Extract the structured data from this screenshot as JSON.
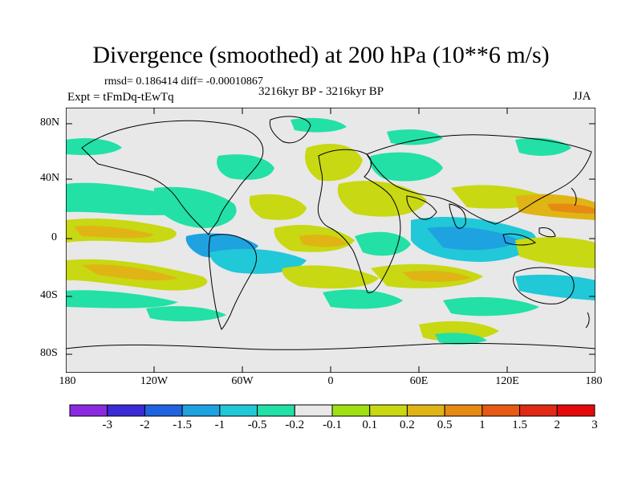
{
  "title": "Divergence (smoothed) at 200 hPa (10**6 m/s)",
  "stats_line": "rmsd= 0.186414 diff= -0.00010867",
  "experiment": "Expt = tFmDq-tEwTq",
  "period": "3216kyr BP - 3216kyr BP",
  "season": "JJA",
  "lat_labels": [
    "80N",
    "40N",
    "0",
    "40S",
    "80S"
  ],
  "lon_labels": [
    "180",
    "120W",
    "60W",
    "0",
    "60E",
    "120E",
    "180"
  ],
  "colorbar": {
    "colors": [
      "#8a2be2",
      "#3b2ad6",
      "#1f63e0",
      "#1ea2e0",
      "#21c8d8",
      "#22e0a6",
      "#e8e8e8",
      "#9ee014",
      "#c8d812",
      "#e0b414",
      "#e68a14",
      "#e65a14",
      "#e02a14",
      "#e40a0a"
    ],
    "labels": [
      "-3",
      "-2",
      "-1.5",
      "-1",
      "-0.5",
      "-0.2",
      "-0.1",
      "0.1",
      "0.2",
      "0.5",
      "1",
      "1.5",
      "2",
      "3"
    ]
  }
}
